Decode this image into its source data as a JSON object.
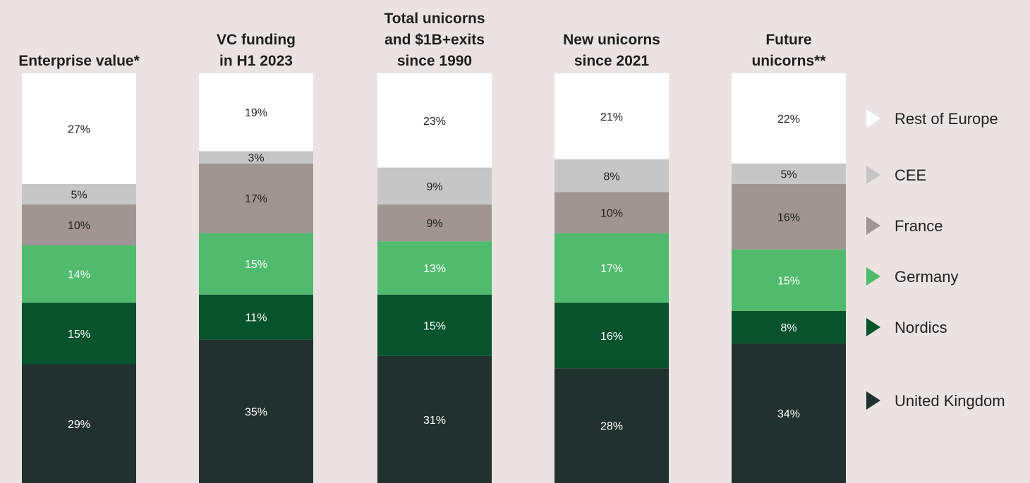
{
  "chart_data": {
    "type": "bar",
    "stacked": true,
    "normalized": true,
    "categories": [
      [
        "Enterprise value*"
      ],
      [
        "VC funding",
        "in H1 2023"
      ],
      [
        "Total unicorns",
        "and $1B+exits",
        "since 1990"
      ],
      [
        "New unicorns",
        "since 2021"
      ],
      [
        "Future",
        "unicorns**"
      ]
    ],
    "series": [
      {
        "name": "United Kingdom",
        "color": "#21312d",
        "label_color": "#ffffff",
        "values": [
          29,
          35,
          31,
          28,
          34
        ]
      },
      {
        "name": "Nordics",
        "color": "#06532c",
        "label_color": "#ffffff",
        "values": [
          15,
          11,
          15,
          16,
          8
        ]
      },
      {
        "name": "Germany",
        "color": "#50bb6c",
        "label_color": "#ffffff",
        "values": [
          14,
          15,
          13,
          17,
          15
        ]
      },
      {
        "name": "France",
        "color": "#a09592",
        "label_color": "#222222",
        "values": [
          10,
          17,
          9,
          10,
          16
        ]
      },
      {
        "name": "CEE",
        "color": "#c6c6c6",
        "label_color": "#222222",
        "values": [
          5,
          3,
          9,
          8,
          5
        ]
      },
      {
        "name": "Rest of Europe",
        "color": "#ffffff",
        "label_color": "#222222",
        "values": [
          27,
          19,
          23,
          21,
          22
        ]
      }
    ],
    "value_suffix": "%",
    "ylim": [
      0,
      100
    ],
    "grid": false,
    "legend_position": "right"
  }
}
